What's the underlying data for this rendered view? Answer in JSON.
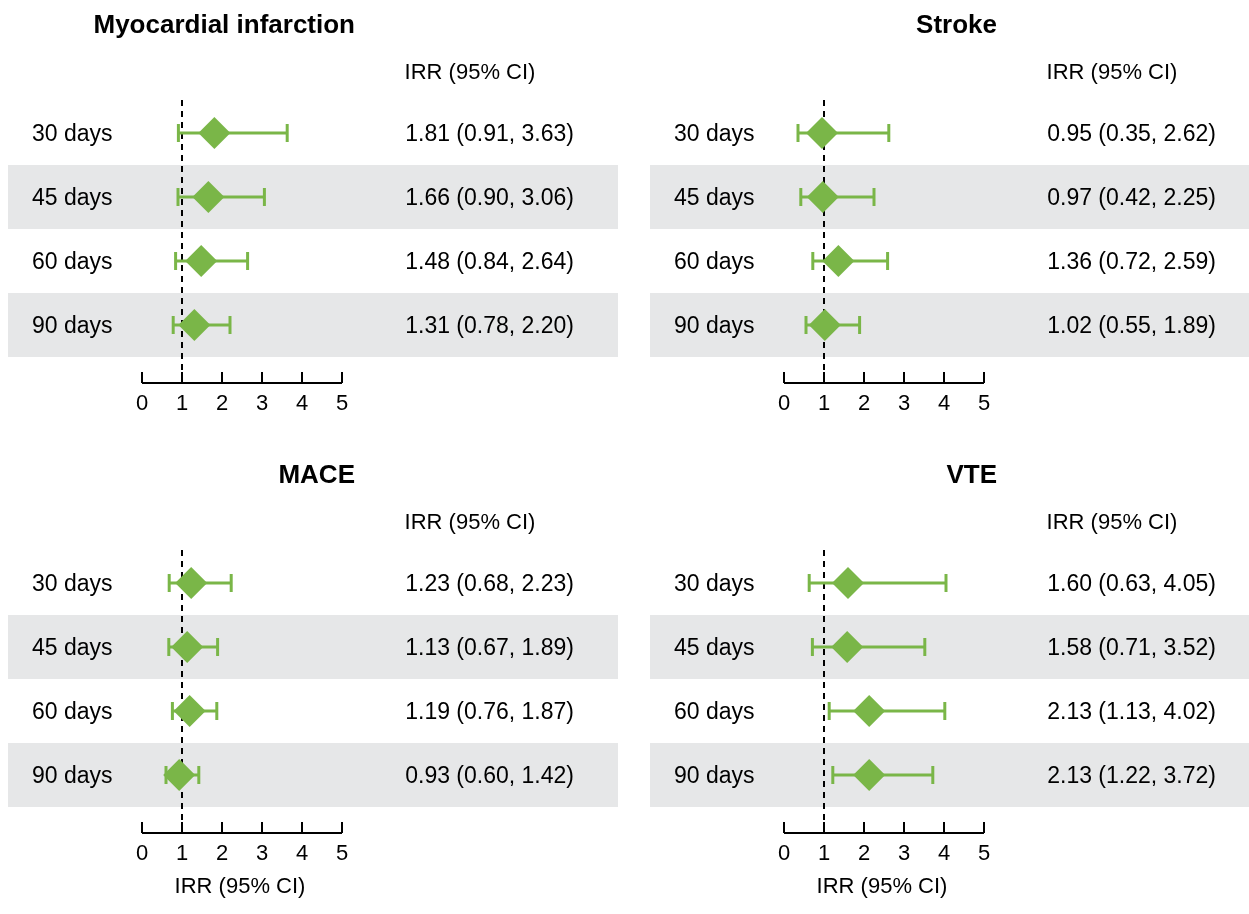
{
  "chart_data": [
    {
      "type": "scatter",
      "orientation": "horizontal",
      "title": "Myocardial infarction",
      "categories": [
        "30 days",
        "45 days",
        "60 days",
        "90 days"
      ],
      "values": [
        1.81,
        1.66,
        1.48,
        1.31
      ],
      "errors": [
        [
          0.91,
          3.63
        ],
        [
          0.9,
          3.06
        ],
        [
          0.84,
          2.64
        ],
        [
          0.78,
          2.2
        ]
      ],
      "value_labels": [
        "1.81 (0.91, 3.63)",
        "1.66 (0.90, 3.06)",
        "1.48 (0.84, 2.64)",
        "1.31 (0.78, 2.20)"
      ],
      "annotations": [
        "IRR (95% CI)"
      ],
      "color": "#7ab648",
      "marker": "diamond",
      "xlim": [
        0,
        5
      ],
      "xticks": [
        0,
        1,
        2,
        3,
        4,
        5
      ],
      "ref_lines": [
        {
          "axis": "x",
          "value": 1,
          "line_style": "dashed",
          "color": "#000000"
        }
      ]
    },
    {
      "type": "scatter",
      "orientation": "horizontal",
      "title": "Stroke",
      "categories": [
        "30 days",
        "45 days",
        "60 days",
        "90 days"
      ],
      "values": [
        0.95,
        0.97,
        1.36,
        1.02
      ],
      "errors": [
        [
          0.35,
          2.62
        ],
        [
          0.42,
          2.25
        ],
        [
          0.72,
          2.59
        ],
        [
          0.55,
          1.89
        ]
      ],
      "value_labels": [
        "0.95 (0.35, 2.62)",
        "0.97 (0.42, 2.25)",
        "1.36 (0.72, 2.59)",
        "1.02 (0.55, 1.89)"
      ],
      "annotations": [
        "IRR (95% CI)"
      ],
      "color": "#7ab648",
      "marker": "diamond",
      "xlim": [
        0,
        5
      ],
      "xticks": [
        0,
        1,
        2,
        3,
        4,
        5
      ],
      "ref_lines": [
        {
          "axis": "x",
          "value": 1,
          "line_style": "dashed",
          "color": "#000000"
        }
      ]
    },
    {
      "type": "scatter",
      "orientation": "horizontal",
      "title": "MACE",
      "xlabel": "IRR (95% CI)",
      "categories": [
        "30 days",
        "45 days",
        "60 days",
        "90 days"
      ],
      "values": [
        1.23,
        1.13,
        1.19,
        0.93
      ],
      "errors": [
        [
          0.68,
          2.23
        ],
        [
          0.67,
          1.89
        ],
        [
          0.76,
          1.87
        ],
        [
          0.6,
          1.42
        ]
      ],
      "value_labels": [
        "1.23 (0.68, 2.23)",
        "1.13 (0.67, 1.89)",
        "1.19 (0.76, 1.87)",
        "0.93 (0.60, 1.42)"
      ],
      "annotations": [
        "IRR (95% CI)"
      ],
      "color": "#7ab648",
      "marker": "diamond",
      "xlim": [
        0,
        5
      ],
      "xticks": [
        0,
        1,
        2,
        3,
        4,
        5
      ],
      "ref_lines": [
        {
          "axis": "x",
          "value": 1,
          "line_style": "dashed",
          "color": "#000000"
        }
      ]
    },
    {
      "type": "scatter",
      "orientation": "horizontal",
      "title": "VTE",
      "xlabel": "IRR (95% CI)",
      "categories": [
        "30 days",
        "45 days",
        "60 days",
        "90 days"
      ],
      "values": [
        1.6,
        1.58,
        2.13,
        2.13
      ],
      "errors": [
        [
          0.63,
          4.05
        ],
        [
          0.71,
          3.52
        ],
        [
          1.13,
          4.02
        ],
        [
          1.22,
          3.72
        ]
      ],
      "value_labels": [
        "1.60 (0.63, 4.05)",
        "1.58 (0.71, 3.52)",
        "2.13 (1.13, 4.02)",
        "2.13 (1.22, 3.72)"
      ],
      "annotations": [
        "IRR (95% CI)"
      ],
      "color": "#7ab648",
      "marker": "diamond",
      "xlim": [
        0,
        5
      ],
      "xticks": [
        0,
        1,
        2,
        3,
        4,
        5
      ],
      "ref_lines": [
        {
          "axis": "x",
          "value": 1,
          "line_style": "dashed",
          "color": "#000000"
        }
      ]
    }
  ]
}
